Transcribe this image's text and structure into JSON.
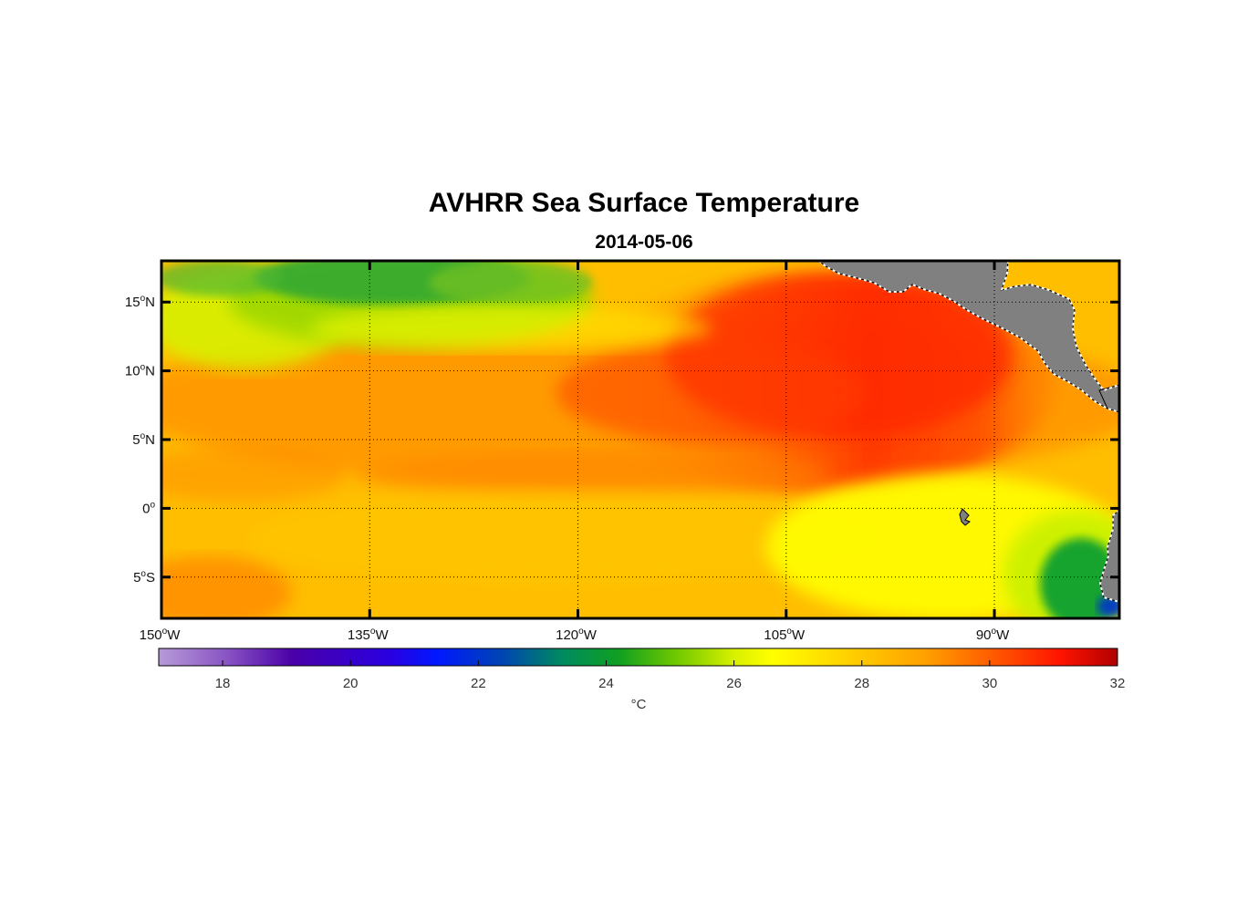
{
  "title": "AVHRR Sea Surface Temperature",
  "subtitle": "2014-05-06",
  "colorbar": {
    "unit": "°C",
    "min": 17,
    "max": 32,
    "ticks": [
      "18",
      "20",
      "22",
      "24",
      "26",
      "28",
      "30",
      "32"
    ]
  },
  "chart_data": {
    "type": "heatmap",
    "title": "AVHRR Sea Surface Temperature",
    "subtitle": "2014-05-06",
    "variable": "Sea surface temperature",
    "unit": "°C",
    "lon_range": [
      -150,
      -81
    ],
    "lat_range": [
      -8,
      18
    ],
    "x_ticks": [
      {
        "value": -150,
        "label": "150",
        "suffix": "W"
      },
      {
        "value": -135,
        "label": "135",
        "suffix": "W"
      },
      {
        "value": -120,
        "label": "120",
        "suffix": "W"
      },
      {
        "value": -105,
        "label": "105",
        "suffix": "W"
      },
      {
        "value": -90,
        "label": "90",
        "suffix": "W"
      }
    ],
    "y_ticks": [
      {
        "value": 15,
        "label": "15",
        "suffix": "N"
      },
      {
        "value": 10,
        "label": "10",
        "suffix": "N"
      },
      {
        "value": 5,
        "label": "5",
        "suffix": "N"
      },
      {
        "value": 0,
        "label": "0",
        "suffix": ""
      },
      {
        "value": -5,
        "label": "5",
        "suffix": "S"
      }
    ],
    "grid": "dotted",
    "colorbar_range": [
      17,
      32
    ],
    "features": [
      {
        "region": "Northwest (15-18N, 150-125W)",
        "sst_c": 23.5
      },
      {
        "region": "Warm pool (5-14N, 110-95W)",
        "sst_c": 30.5
      },
      {
        "region": "Equatorial band (0-5N, 150-90W)",
        "sst_c": 28.3
      },
      {
        "region": "South of equator (0-8S, 150-95W)",
        "sst_c": 27.5
      },
      {
        "region": "Near Galapagos (1S, 91W)",
        "sst_c": 26.0
      },
      {
        "region": "Off Ecuador coast (5-7S, 84-81W)",
        "sst_c": 23.5
      }
    ]
  }
}
